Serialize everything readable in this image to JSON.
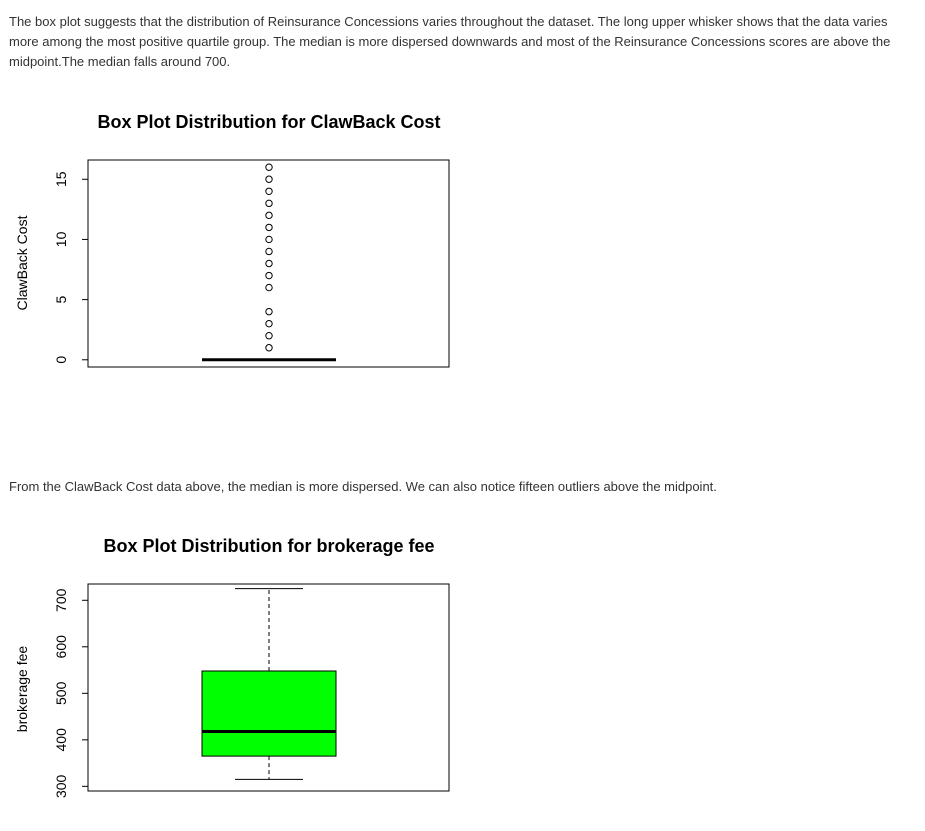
{
  "paragraphs": {
    "intro": "The box plot suggests that the distribution of Reinsurance Concessions varies throughout the dataset. The long upper whisker shows that the data varies more among the most positive quartile group. The median is more dispersed downwards and most of the Reinsurance Concessions scores are above the midpoint.The median falls around 700.",
    "clawback_note": "From the ClawBack Cost data above, the median is more dispersed. We can also notice fifteen outliers above the midpoint."
  },
  "chart_data": [
    {
      "type": "box",
      "title": "Box Plot Distribution for ClawBack Cost",
      "ylabel": "ClawBack Cost",
      "ylim": [
        -0.6,
        16.6
      ],
      "yticks": [
        0,
        5,
        10,
        15
      ],
      "box": {
        "min": 0,
        "q1": 0,
        "median": 0,
        "q3": 0,
        "max": 0,
        "outliers": [
          1,
          2,
          3,
          4,
          6,
          7,
          8,
          9,
          10,
          11,
          12,
          13,
          14,
          15,
          16
        ]
      },
      "fill_color": "#00ff00",
      "grid": false
    },
    {
      "type": "box",
      "title": "Box Plot Distribution for brokerage fee",
      "ylabel": "brokerage fee",
      "ylim": [
        290,
        735
      ],
      "yticks": [
        300,
        400,
        500,
        600,
        700
      ],
      "box": {
        "min": 315,
        "q1": 365,
        "median": 418,
        "q3": 548,
        "max": 725,
        "outliers": []
      },
      "fill_color": "#00ff00",
      "grid": false
    }
  ]
}
